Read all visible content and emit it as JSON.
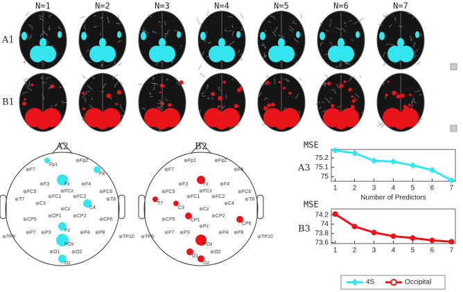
{
  "columns": [
    "N=1",
    "N=2",
    "N=3",
    "N=4",
    "N=5",
    "N=6",
    "N=7"
  ],
  "rows": [
    "A1",
    "B1"
  ],
  "head_maps": [
    {
      "label": "A2",
      "color": "#33e6f0"
    },
    {
      "label": "B2",
      "color": "#e8141a"
    }
  ],
  "electrodes": [
    "Fp1",
    "Fp2",
    "F7",
    "F3",
    "Fz",
    "F4",
    "F8",
    "FC5",
    "FC1",
    "FCz",
    "FC2",
    "FC6",
    "T7",
    "C3",
    "Cz",
    "C4",
    "T8",
    "CP5",
    "CP1",
    "CP2",
    "CP6",
    "P7",
    "P3",
    "Pz",
    "P4",
    "P8",
    "TP9",
    "TP10",
    "POz",
    "O1",
    "Oz",
    "O2"
  ],
  "chart_data": [
    {
      "type": "line",
      "panel": "A3",
      "ylabel": "MSE",
      "xlabel": "Number of Predictors",
      "x": [
        1,
        2,
        3,
        4,
        5,
        6,
        7
      ],
      "xlim": [
        0.8,
        7.2
      ],
      "xticks": [
        1,
        2,
        3,
        4,
        5,
        6,
        7
      ],
      "ylim": [
        74.95,
        75.29
      ],
      "yticks": [
        75,
        75.1,
        75.2
      ],
      "series": [
        {
          "name": "4S",
          "color": "#33e6f0",
          "marker": "diamond",
          "values": [
            75.28,
            75.25,
            75.17,
            75.16,
            75.12,
            75.07,
            74.96
          ]
        }
      ]
    },
    {
      "type": "line",
      "panel": "B3",
      "ylabel": "MSE",
      "x": [
        1,
        2,
        3,
        4,
        5,
        6,
        7
      ],
      "xlim": [
        0.8,
        7.2
      ],
      "xticks": [
        1,
        2,
        3,
        4,
        5,
        6,
        7
      ],
      "ylim": [
        73.58,
        74.33
      ],
      "yticks": [
        73.6,
        73.8,
        74,
        74.2
      ],
      "series": [
        {
          "name": "Occipital",
          "color": "#e8141a",
          "marker": "circle",
          "values": [
            74.22,
            73.95,
            73.82,
            73.74,
            73.7,
            73.65,
            73.62
          ]
        }
      ]
    }
  ]
}
